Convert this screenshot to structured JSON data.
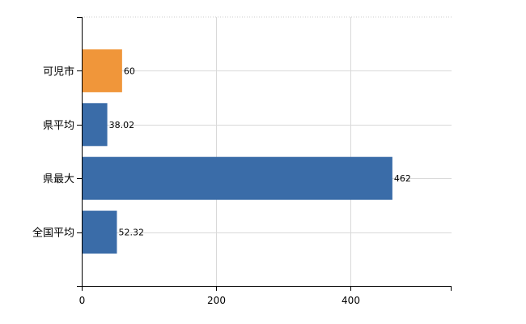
{
  "chart_data": {
    "type": "bar",
    "orientation": "horizontal",
    "categories": [
      "可児市",
      "県平均",
      "県最大",
      "全国平均"
    ],
    "values": [
      60,
      38.02,
      462,
      52.32
    ],
    "value_labels": [
      "60",
      "38.02",
      "462",
      "52.32"
    ],
    "bar_colors": [
      "#f0963a",
      "#3a6ca8",
      "#3a6ca8",
      "#3a6ca8"
    ],
    "highlight_color": "#f0963a",
    "bar_color": "#3a6ca8",
    "xlim": [
      0,
      550
    ],
    "x_ticks": [
      0,
      200,
      400
    ],
    "x_tick_labels": [
      "0",
      "200",
      "400"
    ],
    "grid": true,
    "title": "",
    "xlabel": "",
    "ylabel": ""
  }
}
